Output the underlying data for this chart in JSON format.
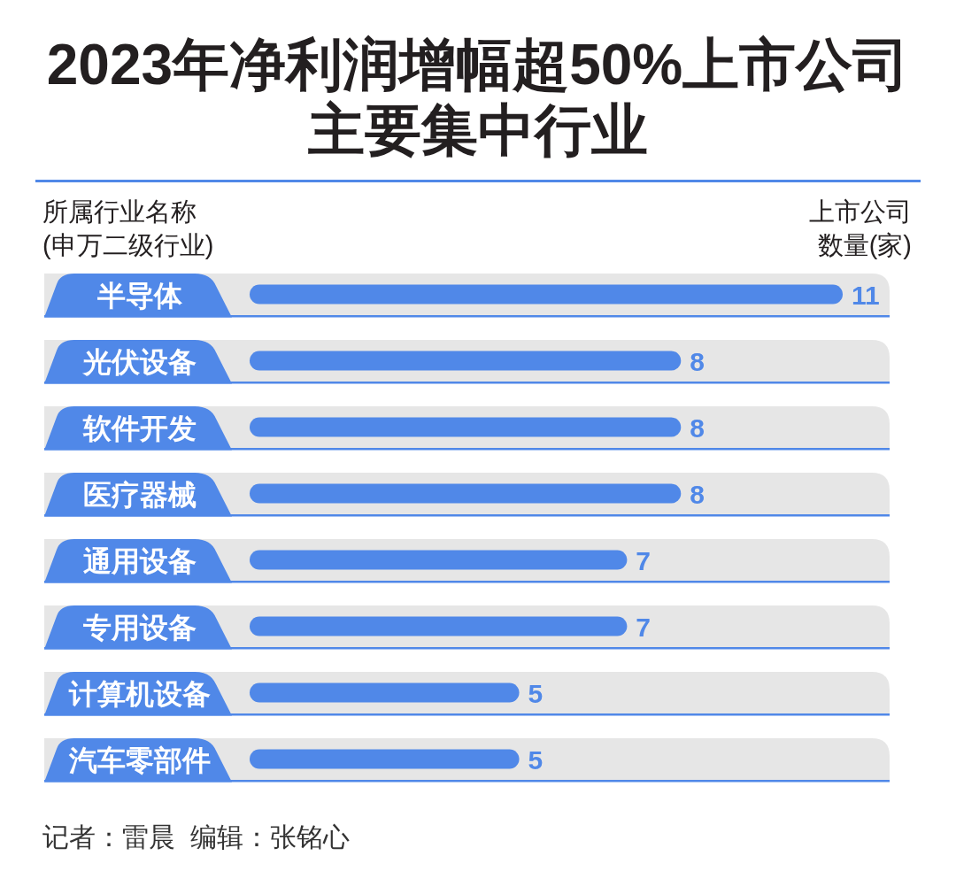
{
  "chart_data": {
    "type": "bar",
    "orientation": "horizontal",
    "title": "2023年净利润增幅超50%上市公司主要集中行业",
    "ylabel": "所属行业名称(申万二级行业)",
    "xlabel": "上市公司数量(家)",
    "categories": [
      "半导体",
      "光伏设备",
      "软件开发",
      "医疗器械",
      "通用设备",
      "专用设备",
      "计算机设备",
      "汽车零部件"
    ],
    "values": [
      11,
      8,
      8,
      8,
      7,
      7,
      5,
      5
    ],
    "color": "#5088e8",
    "data_labels": true,
    "tick_labels": "y",
    "bands": [
      {
        "axis": "y",
        "from": "半导体",
        "to": "半导体",
        "color": "#e6e6e6"
      },
      {
        "axis": "y",
        "from": "光伏设备",
        "to": "光伏设备",
        "color": "#e6e6e6"
      },
      {
        "axis": "y",
        "from": "软件开发",
        "to": "软件开发",
        "color": "#e6e6e6"
      },
      {
        "axis": "y",
        "from": "医疗器械",
        "to": "医疗器械",
        "color": "#e6e6e6"
      },
      {
        "axis": "y",
        "from": "通用设备",
        "to": "通用设备",
        "color": "#e6e6e6"
      },
      {
        "axis": "y",
        "from": "专用设备",
        "to": "专用设备",
        "color": "#e6e6e6"
      },
      {
        "axis": "y",
        "from": "计算机设备",
        "to": "计算机设备",
        "color": "#e6e6e6"
      },
      {
        "axis": "y",
        "from": "汽车零部件",
        "to": "汽车零部件",
        "color": "#e6e6e6"
      }
    ],
    "annotations": [
      "记者：雷晨  编辑：张铭心"
    ]
  }
}
